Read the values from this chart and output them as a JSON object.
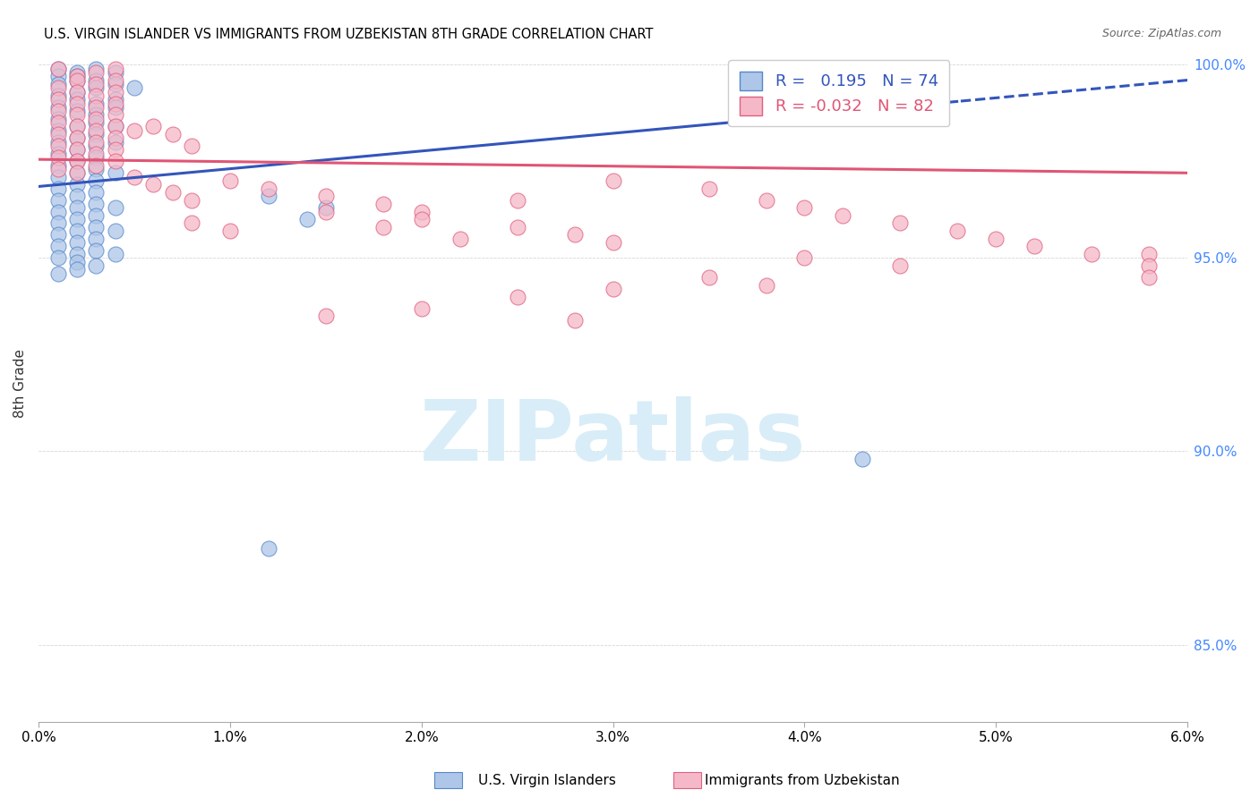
{
  "title": "U.S. VIRGIN ISLANDER VS IMMIGRANTS FROM UZBEKISTAN 8TH GRADE CORRELATION CHART",
  "source": "Source: ZipAtlas.com",
  "ylabel": "8th Grade",
  "xmin": 0.0,
  "xmax": 0.06,
  "ymin": 0.83,
  "ymax": 1.005,
  "yticks": [
    0.85,
    0.9,
    0.95,
    1.0
  ],
  "ytick_labels": [
    "85.0%",
    "90.0%",
    "95.0%",
    "100.0%"
  ],
  "xticks": [
    0.0,
    0.01,
    0.02,
    0.03,
    0.04,
    0.05,
    0.06
  ],
  "xtick_labels": [
    "0.0%",
    "1.0%",
    "2.0%",
    "3.0%",
    "4.0%",
    "5.0%",
    "6.0%"
  ],
  "legend1_r": "0.195",
  "legend1_n": "74",
  "legend2_r": "-0.032",
  "legend2_n": "82",
  "color1_fill": "#aec6e8",
  "color1_edge": "#5588cc",
  "color2_fill": "#f5b8c8",
  "color2_edge": "#e06080",
  "line1_color": "#3355bb",
  "line2_color": "#e05575",
  "watermark_text": "ZIPatlas",
  "watermark_color": "#d8edf8",
  "grid_color": "#dddddd",
  "trend_line_split": 0.048,
  "blue_dots": [
    [
      0.001,
      0.999
    ],
    [
      0.002,
      0.998
    ],
    [
      0.003,
      0.999
    ],
    [
      0.001,
      0.997
    ],
    [
      0.002,
      0.996
    ],
    [
      0.004,
      0.998
    ],
    [
      0.002,
      0.997
    ],
    [
      0.003,
      0.996
    ],
    [
      0.001,
      0.995
    ],
    [
      0.003,
      0.994
    ],
    [
      0.002,
      0.993
    ],
    [
      0.001,
      0.992
    ],
    [
      0.004,
      0.995
    ],
    [
      0.002,
      0.991
    ],
    [
      0.003,
      0.99
    ],
    [
      0.001,
      0.989
    ],
    [
      0.002,
      0.988
    ],
    [
      0.003,
      0.987
    ],
    [
      0.001,
      0.986
    ],
    [
      0.004,
      0.991
    ],
    [
      0.005,
      0.994
    ],
    [
      0.004,
      0.989
    ],
    [
      0.003,
      0.985
    ],
    [
      0.002,
      0.984
    ],
    [
      0.001,
      0.983
    ],
    [
      0.003,
      0.982
    ],
    [
      0.002,
      0.981
    ],
    [
      0.004,
      0.984
    ],
    [
      0.001,
      0.98
    ],
    [
      0.003,
      0.979
    ],
    [
      0.002,
      0.978
    ],
    [
      0.001,
      0.977
    ],
    [
      0.004,
      0.98
    ],
    [
      0.003,
      0.976
    ],
    [
      0.002,
      0.975
    ],
    [
      0.001,
      0.974
    ],
    [
      0.003,
      0.973
    ],
    [
      0.002,
      0.972
    ],
    [
      0.001,
      0.971
    ],
    [
      0.003,
      0.97
    ],
    [
      0.002,
      0.969
    ],
    [
      0.004,
      0.972
    ],
    [
      0.001,
      0.968
    ],
    [
      0.003,
      0.967
    ],
    [
      0.002,
      0.966
    ],
    [
      0.001,
      0.965
    ],
    [
      0.003,
      0.964
    ],
    [
      0.002,
      0.963
    ],
    [
      0.001,
      0.962
    ],
    [
      0.003,
      0.961
    ],
    [
      0.002,
      0.96
    ],
    [
      0.004,
      0.963
    ],
    [
      0.001,
      0.959
    ],
    [
      0.003,
      0.958
    ],
    [
      0.002,
      0.957
    ],
    [
      0.001,
      0.956
    ],
    [
      0.003,
      0.955
    ],
    [
      0.002,
      0.954
    ],
    [
      0.004,
      0.957
    ],
    [
      0.001,
      0.953
    ],
    [
      0.003,
      0.952
    ],
    [
      0.002,
      0.951
    ],
    [
      0.001,
      0.95
    ],
    [
      0.002,
      0.949
    ],
    [
      0.003,
      0.948
    ],
    [
      0.004,
      0.951
    ],
    [
      0.002,
      0.947
    ],
    [
      0.001,
      0.946
    ],
    [
      0.012,
      0.966
    ],
    [
      0.015,
      0.963
    ],
    [
      0.014,
      0.96
    ],
    [
      0.047,
      0.999
    ],
    [
      0.043,
      0.898
    ],
    [
      0.012,
      0.875
    ]
  ],
  "pink_dots": [
    [
      0.001,
      0.999
    ],
    [
      0.003,
      0.998
    ],
    [
      0.002,
      0.997
    ],
    [
      0.004,
      0.999
    ],
    [
      0.002,
      0.996
    ],
    [
      0.003,
      0.995
    ],
    [
      0.001,
      0.994
    ],
    [
      0.004,
      0.996
    ],
    [
      0.002,
      0.993
    ],
    [
      0.003,
      0.992
    ],
    [
      0.001,
      0.991
    ],
    [
      0.004,
      0.993
    ],
    [
      0.002,
      0.99
    ],
    [
      0.003,
      0.989
    ],
    [
      0.001,
      0.988
    ],
    [
      0.004,
      0.99
    ],
    [
      0.002,
      0.987
    ],
    [
      0.003,
      0.986
    ],
    [
      0.001,
      0.985
    ],
    [
      0.004,
      0.987
    ],
    [
      0.002,
      0.984
    ],
    [
      0.003,
      0.983
    ],
    [
      0.001,
      0.982
    ],
    [
      0.004,
      0.984
    ],
    [
      0.002,
      0.981
    ],
    [
      0.003,
      0.98
    ],
    [
      0.001,
      0.979
    ],
    [
      0.004,
      0.981
    ],
    [
      0.005,
      0.983
    ],
    [
      0.002,
      0.978
    ],
    [
      0.003,
      0.977
    ],
    [
      0.001,
      0.976
    ],
    [
      0.004,
      0.978
    ],
    [
      0.002,
      0.975
    ],
    [
      0.003,
      0.974
    ],
    [
      0.001,
      0.973
    ],
    [
      0.004,
      0.975
    ],
    [
      0.002,
      0.972
    ],
    [
      0.006,
      0.984
    ],
    [
      0.007,
      0.982
    ],
    [
      0.008,
      0.979
    ],
    [
      0.005,
      0.971
    ],
    [
      0.006,
      0.969
    ],
    [
      0.007,
      0.967
    ],
    [
      0.008,
      0.965
    ],
    [
      0.01,
      0.97
    ],
    [
      0.012,
      0.968
    ],
    [
      0.015,
      0.966
    ],
    [
      0.018,
      0.964
    ],
    [
      0.02,
      0.962
    ],
    [
      0.025,
      0.965
    ],
    [
      0.008,
      0.959
    ],
    [
      0.01,
      0.957
    ],
    [
      0.015,
      0.962
    ],
    [
      0.02,
      0.96
    ],
    [
      0.025,
      0.958
    ],
    [
      0.028,
      0.956
    ],
    [
      0.03,
      0.954
    ],
    [
      0.022,
      0.955
    ],
    [
      0.018,
      0.958
    ],
    [
      0.03,
      0.97
    ],
    [
      0.035,
      0.968
    ],
    [
      0.038,
      0.965
    ],
    [
      0.04,
      0.963
    ],
    [
      0.042,
      0.961
    ],
    [
      0.045,
      0.959
    ],
    [
      0.048,
      0.957
    ],
    [
      0.05,
      0.955
    ],
    [
      0.052,
      0.953
    ],
    [
      0.055,
      0.951
    ],
    [
      0.04,
      0.95
    ],
    [
      0.045,
      0.948
    ],
    [
      0.035,
      0.945
    ],
    [
      0.03,
      0.942
    ],
    [
      0.025,
      0.94
    ],
    [
      0.02,
      0.937
    ],
    [
      0.015,
      0.935
    ],
    [
      0.028,
      0.934
    ],
    [
      0.038,
      0.943
    ],
    [
      0.058,
      0.951
    ],
    [
      0.058,
      0.948
    ],
    [
      0.058,
      0.945
    ]
  ]
}
